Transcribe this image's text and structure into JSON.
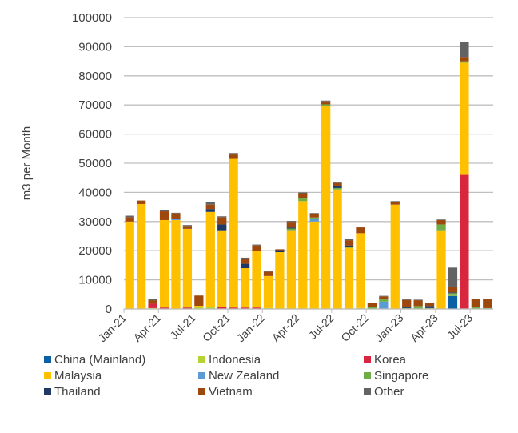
{
  "chart_data": {
    "type": "bar",
    "stacked": true,
    "title": "",
    "xlabel": "",
    "ylabel": "m3 per Month",
    "ylim": [
      0,
      100000
    ],
    "yticks": [
      0,
      10000,
      20000,
      30000,
      40000,
      50000,
      60000,
      70000,
      80000,
      90000,
      100000
    ],
    "grid": true,
    "legend_position": "bottom",
    "categories": [
      "Jan-21",
      "Feb-21",
      "Mar-21",
      "Apr-21",
      "May-21",
      "Jun-21",
      "Jul-21",
      "Aug-21",
      "Sep-21",
      "Oct-21",
      "Nov-21",
      "Dec-21",
      "Jan-22",
      "Feb-22",
      "Mar-22",
      "Apr-22",
      "May-22",
      "Jun-22",
      "Jul-22",
      "Aug-22",
      "Sep-22",
      "Oct-22",
      "Nov-22",
      "Dec-22",
      "Jan-23",
      "Feb-23",
      "Mar-23",
      "Apr-23",
      "May-23",
      "Jun-23",
      "Jul-23",
      "Aug-23"
    ],
    "xtick_labels": [
      "Jan-21",
      "Apr-21",
      "Jul-21",
      "Oct-21",
      "Jan-22",
      "Apr-22",
      "Jul-22",
      "Oct-22",
      "Jan-23",
      "Apr-23",
      "Jul-23"
    ],
    "series": [
      {
        "name": "China (Mainland)",
        "color": "#0B5FA5",
        "values": [
          0,
          0,
          0,
          0,
          0,
          0,
          0,
          0,
          0,
          0,
          0,
          0,
          0,
          0,
          0,
          0,
          0,
          0,
          0,
          0,
          0,
          0,
          0,
          0,
          0,
          0,
          0,
          0,
          4500,
          0,
          0,
          0
        ]
      },
      {
        "name": "Indonesia",
        "color": "#B5D334",
        "values": [
          0,
          0,
          300,
          0,
          0,
          0,
          800,
          800,
          0,
          0,
          0,
          0,
          300,
          0,
          0,
          0,
          0,
          0,
          0,
          0,
          300,
          0,
          0,
          0,
          0,
          0,
          0,
          0,
          500,
          0,
          0,
          0
        ]
      },
      {
        "name": "Korea",
        "color": "#D7263D",
        "values": [
          0,
          0,
          1500,
          500,
          0,
          500,
          0,
          0,
          700,
          500,
          500,
          500,
          0,
          0,
          0,
          0,
          0,
          0,
          0,
          0,
          0,
          0,
          0,
          0,
          0,
          0,
          0,
          0,
          0,
          46000,
          0,
          0
        ]
      },
      {
        "name": "Malaysia",
        "color": "#FFC000",
        "values": [
          30000,
          36000,
          0,
          30000,
          30500,
          27000,
          300,
          32500,
          26300,
          51000,
          13500,
          19500,
          11000,
          19500,
          27000,
          37000,
          30000,
          69500,
          41000,
          21000,
          25700,
          0,
          0,
          35800,
          0,
          0,
          0,
          27000,
          0,
          38500,
          0,
          0
        ]
      },
      {
        "name": "New Zealand",
        "color": "#5B9BD5",
        "values": [
          0,
          0,
          0,
          0,
          300,
          0,
          0,
          0,
          0,
          0,
          0,
          0,
          0,
          0,
          0,
          0,
          1000,
          0,
          0,
          0,
          0,
          0,
          2500,
          0,
          0,
          0,
          0,
          0,
          0,
          0,
          0,
          0
        ]
      },
      {
        "name": "Singapore",
        "color": "#70AD47",
        "values": [
          0,
          0,
          0,
          0,
          0,
          0,
          0,
          0,
          0,
          0,
          0,
          0,
          0,
          0,
          600,
          1000,
          400,
          700,
          500,
          300,
          0,
          800,
          800,
          0,
          300,
          1000,
          300,
          2000,
          400,
          500,
          800,
          300
        ]
      },
      {
        "name": "Thailand",
        "color": "#203864",
        "values": [
          0,
          0,
          0,
          0,
          0,
          0,
          0,
          1000,
          2000,
          0,
          1500,
          0,
          0,
          700,
          300,
          0,
          0,
          0,
          700,
          500,
          0,
          0,
          0,
          0,
          500,
          0,
          700,
          0,
          300,
          0,
          0,
          0
        ]
      },
      {
        "name": "Vietnam",
        "color": "#9E480E",
        "values": [
          1500,
          1200,
          1200,
          3000,
          2000,
          1000,
          3500,
          1500,
          2500,
          1500,
          1800,
          1800,
          1500,
          300,
          2000,
          1700,
          1200,
          1000,
          1000,
          1800,
          2000,
          1200,
          1000,
          1000,
          2300,
          2000,
          1000,
          1500,
          2000,
          1500,
          2500,
          3000
        ]
      },
      {
        "name": "Other",
        "color": "#636363",
        "values": [
          500,
          0,
          300,
          300,
          200,
          300,
          0,
          800,
          300,
          500,
          300,
          300,
          300,
          0,
          300,
          300,
          300,
          300,
          300,
          300,
          300,
          200,
          200,
          200,
          200,
          200,
          200,
          200,
          6500,
          5000,
          200,
          200
        ]
      }
    ]
  }
}
